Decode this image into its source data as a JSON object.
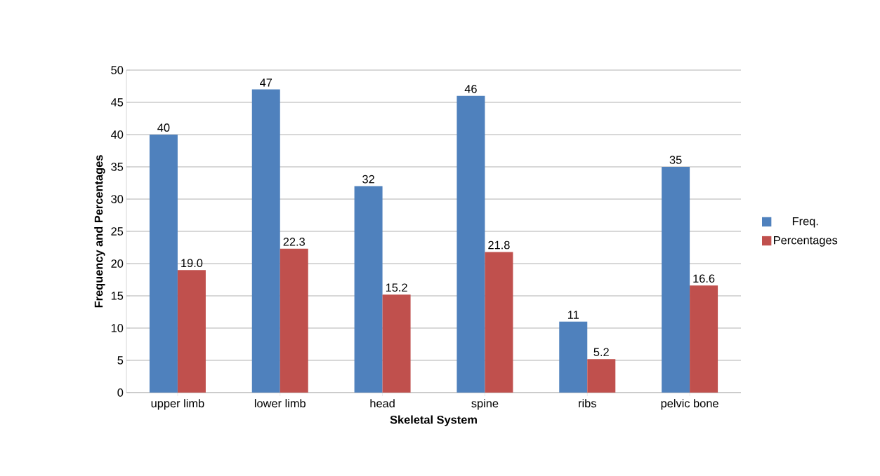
{
  "chart_data": {
    "type": "bar",
    "xlabel": "Skeletal System",
    "ylabel": "Frequency and Percentages",
    "categories": [
      "upper limb",
      "lower limb",
      "head",
      "spine",
      "ribs",
      "pelvic bone"
    ],
    "series": [
      {
        "name": "Freq.",
        "color": "#4f81bd",
        "values": [
          40,
          47,
          32,
          46,
          11,
          35
        ],
        "value_labels": [
          "40",
          "47",
          "32",
          "46",
          "11",
          "35"
        ]
      },
      {
        "name": "Percentages",
        "color": "#c0504d",
        "values": [
          19.0,
          22.3,
          15.2,
          21.8,
          5.2,
          16.6
        ],
        "value_labels": [
          "19.0",
          "22.3",
          "15.2",
          "21.8",
          "5.2",
          "16.6"
        ]
      }
    ],
    "ylim": [
      0,
      50
    ],
    "yticks": [
      0,
      5,
      10,
      15,
      20,
      25,
      30,
      35,
      40,
      45,
      50
    ],
    "grid": "y",
    "legend": "right"
  }
}
